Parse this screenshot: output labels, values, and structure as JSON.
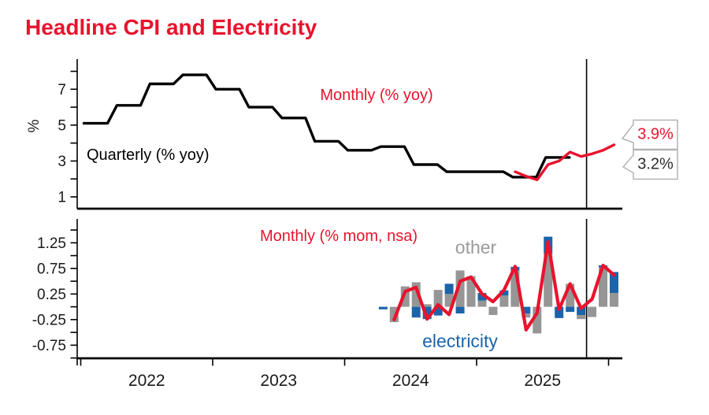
{
  "title": "Headline CPI and Electricity",
  "colors": {
    "red": "#e8132d",
    "blue": "#1b64aa",
    "gray_bar": "#969696",
    "gray_text": "#9b9b9b",
    "black": "#000000",
    "tick_text": "#1a1a1a",
    "callout_border": "#b3b3b3",
    "callout_dark_text": "#2b2b2b"
  },
  "x_axis": {
    "year_labels": [
      "2022",
      "2023",
      "2024",
      "2025"
    ],
    "year_tick_years": [
      2022,
      2023,
      2024,
      2025,
      2026
    ]
  },
  "chart_data": [
    {
      "type": "line",
      "panel": "top",
      "ylabel": "%",
      "ylim": [
        0.7,
        8.7
      ],
      "yticks_labeled": [
        7,
        5,
        3,
        1
      ],
      "yticks_all": [
        1,
        2,
        3,
        4,
        5,
        6,
        7,
        8
      ],
      "grid": false,
      "series": [
        {
          "name": "Quarterly (% yoy)",
          "style": "step",
          "color_key": "black",
          "quarters": [
            "2022Q1",
            "2022Q2",
            "2022Q3",
            "2022Q4",
            "2023Q1",
            "2023Q2",
            "2023Q3",
            "2023Q4",
            "2024Q1",
            "2024Q2",
            "2024Q3",
            "2024Q4",
            "2025Q1",
            "2025Q2",
            "2025Q3"
          ],
          "values": [
            5.1,
            6.1,
            7.3,
            7.8,
            7.0,
            6.0,
            5.4,
            4.1,
            3.6,
            3.8,
            2.8,
            2.4,
            2.4,
            2.1,
            3.2
          ],
          "end_callout": "3.2%"
        },
        {
          "name": "Monthly (% yoy)",
          "style": "line",
          "color_key": "red",
          "months": [
            "2025-04",
            "2025-05",
            "2025-06",
            "2025-07",
            "2025-08",
            "2025-09",
            "2025-10",
            "2025-11",
            "2025-12",
            "2026-01"
          ],
          "values": [
            2.4,
            2.15,
            1.95,
            2.8,
            3.0,
            3.5,
            3.25,
            3.4,
            3.6,
            3.9
          ],
          "end_callout": "3.9%"
        }
      ],
      "annotations": {
        "forecast_vline_month": "2025-11"
      }
    },
    {
      "type": "bar+line",
      "panel": "bottom",
      "ylim": [
        -1.1,
        1.6
      ],
      "yticks_labeled": [
        1.25,
        0.75,
        0.25,
        -0.25,
        -0.75
      ],
      "ytick_step": 0.25,
      "ytick_min": -1.0,
      "ytick_max": 1.5,
      "grid": false,
      "months": [
        "2024-04",
        "2024-05",
        "2024-06",
        "2024-07",
        "2024-08",
        "2024-09",
        "2024-10",
        "2024-11",
        "2024-12",
        "2025-01",
        "2025-02",
        "2025-03",
        "2025-04",
        "2025-05",
        "2025-06",
        "2025-07",
        "2025-08",
        "2025-09",
        "2025-10",
        "2025-11",
        "2025-12",
        "2026-01"
      ],
      "series": [
        {
          "name": "electricity",
          "type": "bar",
          "color_key": "blue",
          "values": [
            -0.05,
            0,
            0,
            -0.21,
            -0.24,
            -0.17,
            0.2,
            -0.13,
            0,
            0.15,
            0,
            0.1,
            0.07,
            -0.13,
            0,
            0.33,
            -0.22,
            -0.1,
            -0.16,
            0,
            0.03,
            0.41
          ]
        },
        {
          "name": "other",
          "type": "bar",
          "color_key": "gray",
          "values": [
            0,
            -0.3,
            0.4,
            0.48,
            0.05,
            0.33,
            0.25,
            0.71,
            0.6,
            0.12,
            -0.16,
            0.22,
            0.71,
            -0.08,
            -0.52,
            1.04,
            0,
            0.45,
            -0.08,
            -0.2,
            0.78,
            0.27
          ]
        },
        {
          "name": "Monthly (% mom, nsa)",
          "type": "line",
          "color_key": "red",
          "values": [
            null,
            -0.25,
            0.3,
            0.38,
            -0.24,
            0.04,
            -0.15,
            0.5,
            0.58,
            0.25,
            0.1,
            0.33,
            0.79,
            -0.45,
            -0.12,
            1.27,
            -0.05,
            0.45,
            -0.03,
            0.15,
            0.81,
            0.62
          ]
        }
      ],
      "annotations": {
        "forecast_vline_month": "2025-11"
      }
    }
  ]
}
